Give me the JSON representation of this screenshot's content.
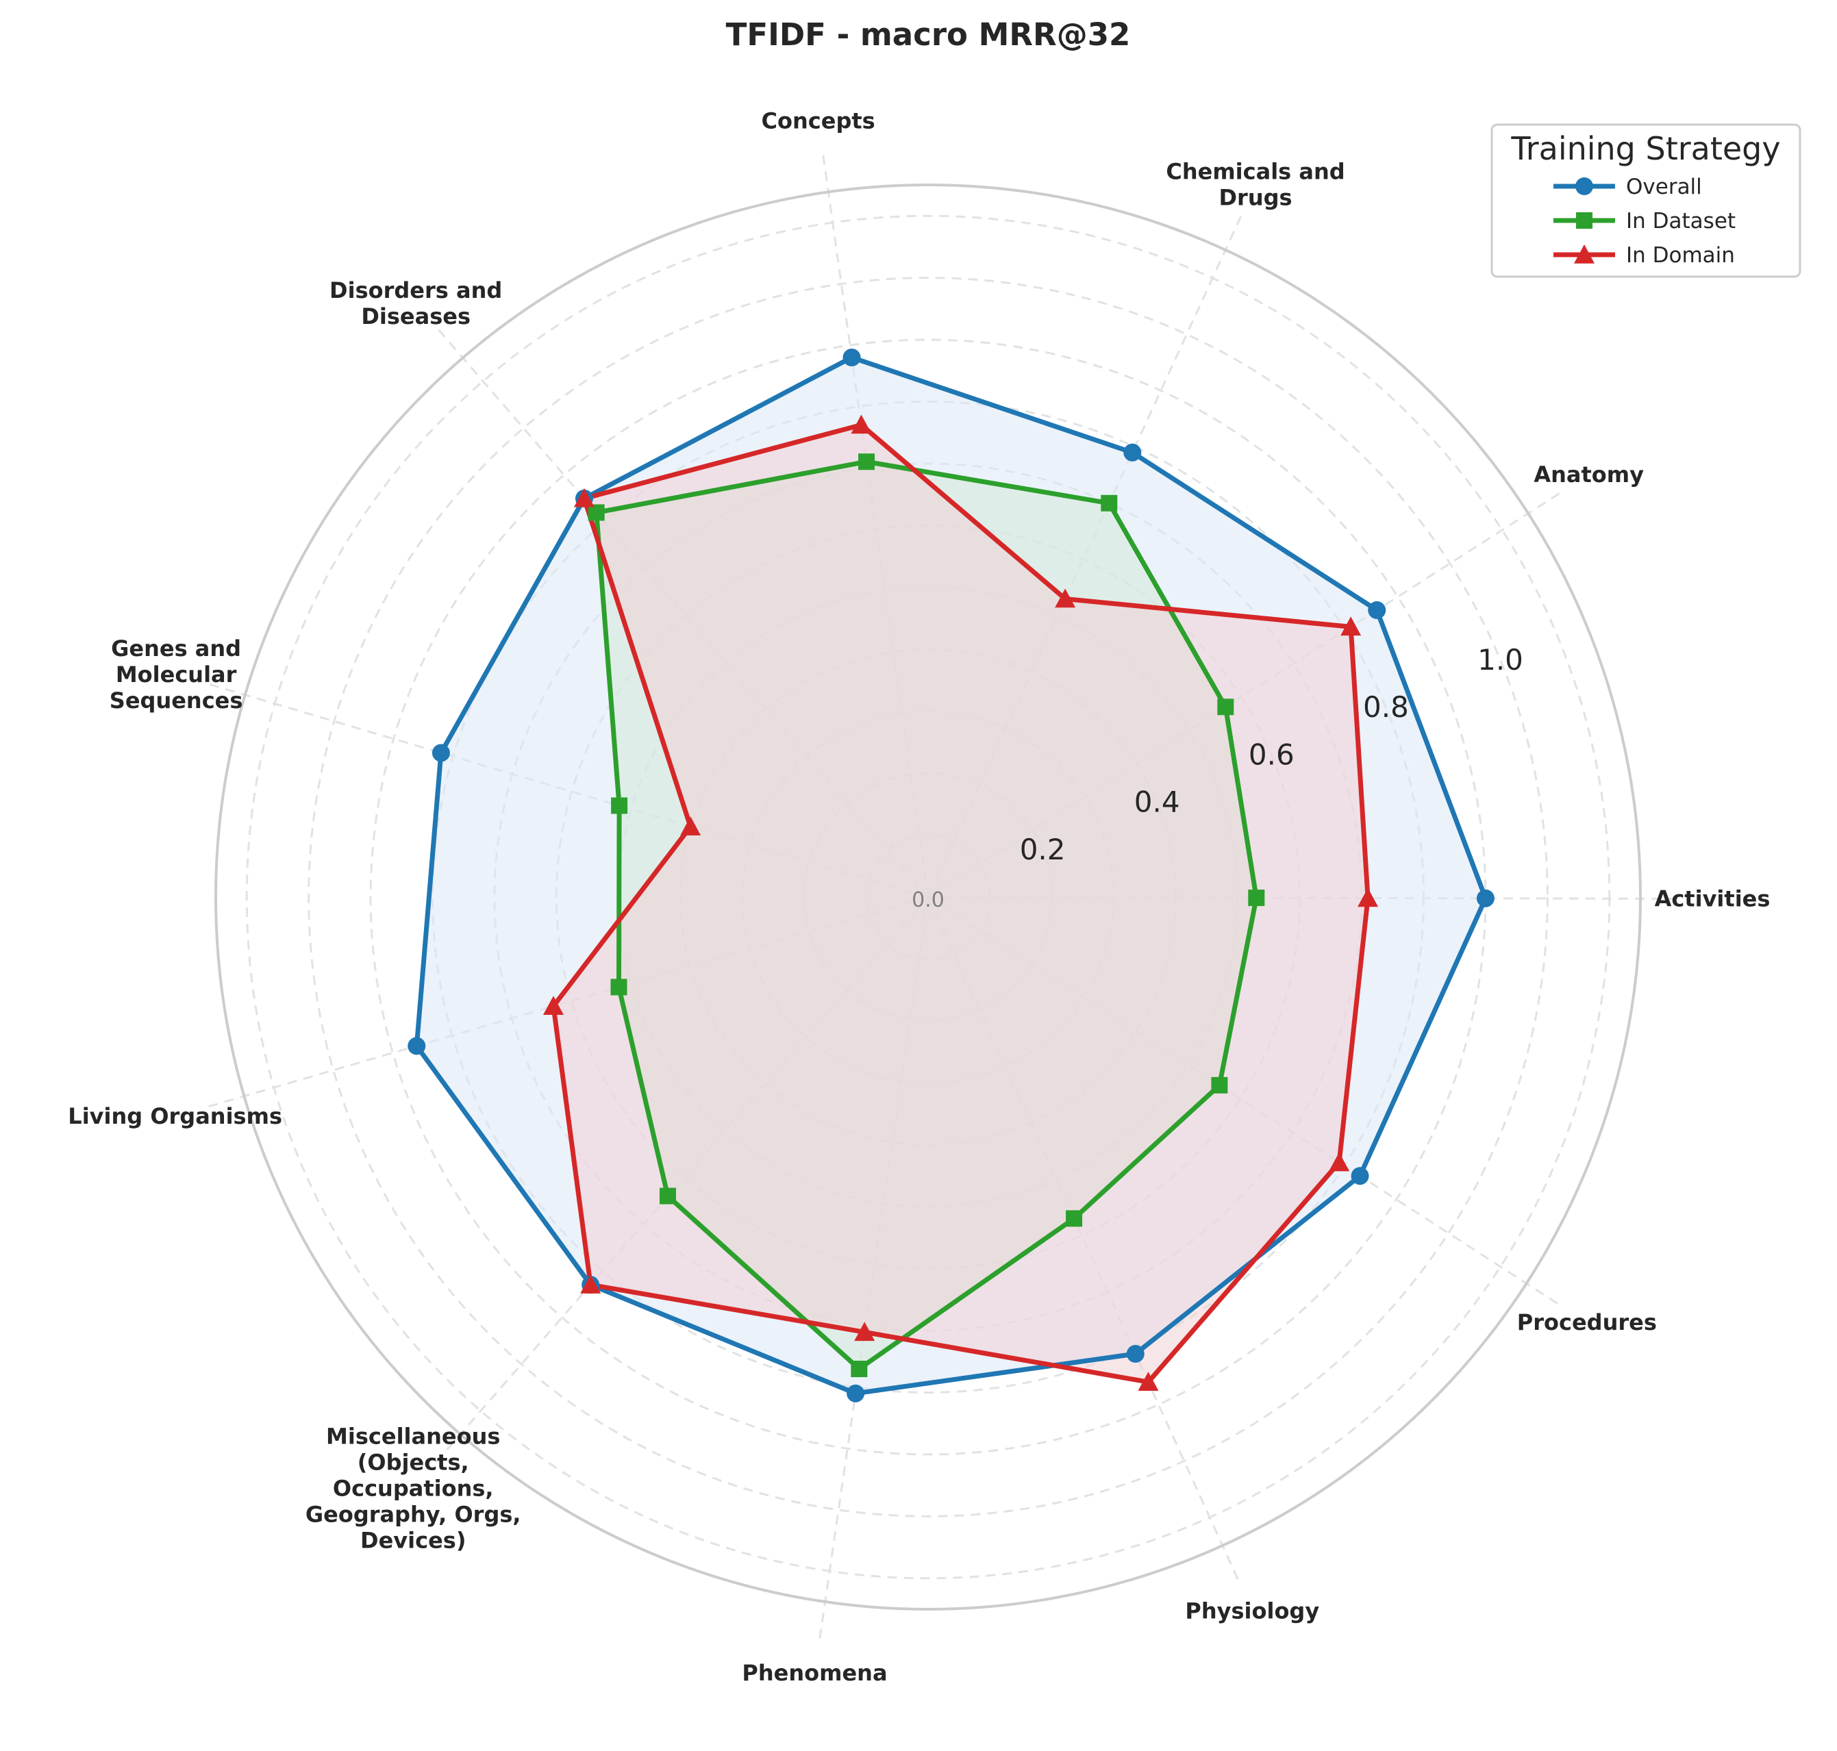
{
  "chart_data": {
    "type": "radar",
    "title": "TFIDF - macro MRR@32",
    "axes": [
      [
        "Activities"
      ],
      [
        "Anatomy"
      ],
      [
        "Chemicals and",
        "Drugs"
      ],
      [
        "Concepts"
      ],
      [
        "Disorders and",
        "Diseases"
      ],
      [
        "Genes and",
        "Molecular",
        "Sequences"
      ],
      [
        "Living Organisms"
      ],
      [
        "Miscellaneous",
        "(Objects,",
        "Occupations,",
        "Geography, Orgs,",
        "Devices)"
      ],
      [
        "Phenomena"
      ],
      [
        "Physiology"
      ],
      [
        "Procedures"
      ]
    ],
    "rlim": [
      0,
      1.15
    ],
    "rticks": [
      0.0,
      0.2,
      0.4,
      0.6,
      0.8,
      1.0
    ],
    "rtick_labels": [
      "0.0",
      "0.2",
      "0.4",
      "0.6",
      "0.8",
      "1.0"
    ],
    "grid": true,
    "legend_title": "Training Strategy",
    "legend_position": "top-right",
    "series": [
      {
        "name": "Overall",
        "marker": "circle",
        "color": "#1f77b4",
        "fill": "#dbe8f6",
        "values": [
          0.9,
          0.86,
          0.79,
          0.88,
          0.85,
          0.82,
          0.86,
          0.83,
          0.81,
          0.81,
          0.83
        ]
      },
      {
        "name": "In Dataset",
        "marker": "square",
        "color": "#2ca02c",
        "fill": "#d5ead8",
        "values": [
          0.53,
          0.57,
          0.7,
          0.71,
          0.82,
          0.52,
          0.52,
          0.64,
          0.77,
          0.57,
          0.56
        ]
      },
      {
        "name": "In Domain",
        "marker": "triangle",
        "color": "#d62728",
        "fill": "#f0d2d6",
        "values": [
          0.71,
          0.81,
          0.53,
          0.77,
          0.85,
          0.4,
          0.63,
          0.83,
          0.71,
          0.86,
          0.79
        ]
      }
    ]
  }
}
